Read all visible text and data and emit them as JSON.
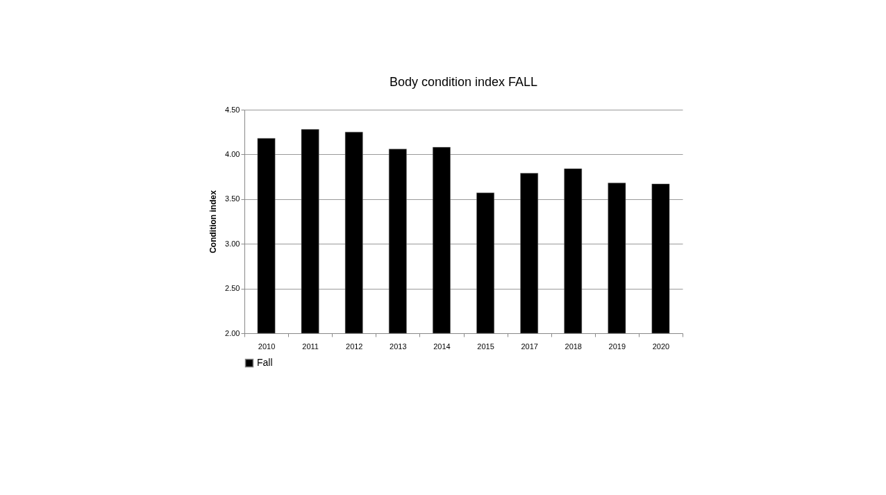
{
  "chart_data": {
    "type": "bar",
    "title": "Body condition index FALL",
    "ylabel": "Condition index",
    "categories": [
      "2010",
      "2011",
      "2012",
      "2013",
      "2014",
      "2015",
      "2017",
      "2018",
      "2019",
      "2020"
    ],
    "series": [
      {
        "name": "Fall",
        "color": "#000000",
        "values": [
          4.18,
          4.28,
          4.25,
          4.06,
          4.08,
          3.57,
          3.79,
          3.84,
          3.68,
          3.67
        ]
      }
    ],
    "ylim": [
      2.0,
      4.5
    ],
    "yticks": [
      {
        "value": 2.0,
        "label": "2.00"
      },
      {
        "value": 2.5,
        "label": "2.50"
      },
      {
        "value": 3.0,
        "label": "3.00"
      },
      {
        "value": 3.5,
        "label": "3.50"
      },
      {
        "value": 4.0,
        "label": "4.00"
      },
      {
        "value": 4.5,
        "label": "4.50"
      }
    ],
    "grid": "y",
    "legend": "bottom"
  }
}
